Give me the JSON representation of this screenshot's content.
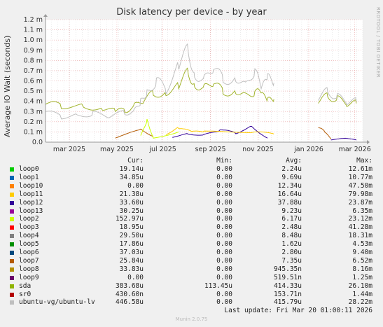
{
  "chart_data": {
    "type": "line",
    "title": "Disk latency per device - by year",
    "ylabel": "Average IO Wait (seconds)",
    "xlabel": "",
    "side_label": "RRDTOOL / TOBI OETIKER",
    "ylim": [
      0,
      0.0012
    ],
    "yticks": [
      "0.0",
      "0.1 m",
      "0.2 m",
      "0.3 m",
      "0.4 m",
      "0.5 m",
      "0.6 m",
      "0.7 m",
      "0.8 m",
      "0.9 m",
      "1.0 m",
      "1.1 m",
      "1.2 m"
    ],
    "xticks": [
      "mar 2025",
      "may 2025",
      "jul 2025",
      "sep 2025",
      "nov 2025",
      "jan 2026",
      "mar 2026"
    ],
    "grid": true,
    "colors": {
      "background": "#f0f0f0",
      "plot_background": "#ffffff",
      "grid_major": "#e8a0a0",
      "grid_minor": "#d8d8d8",
      "axis": "#999999"
    },
    "series": [
      {
        "name": "sda",
        "color": "#a2b42d",
        "points": [
          [
            0.0,
            0.00037
          ],
          [
            0.05,
            0.00036
          ],
          [
            0.12,
            0.00035
          ],
          [
            0.18,
            0.00034
          ],
          [
            0.22,
            0.0003
          ],
          [
            0.25,
            0.00031
          ],
          [
            0.28,
            0.00035
          ],
          [
            0.31,
            0.00042
          ],
          [
            0.34,
            0.00047
          ],
          [
            0.38,
            0.0005
          ],
          [
            0.42,
            0.00055
          ],
          [
            0.45,
            0.00068
          ],
          [
            0.47,
            0.00058
          ],
          [
            0.5,
            0.00052
          ],
          [
            0.53,
            0.0006
          ],
          [
            0.56,
            0.00048
          ],
          [
            0.6,
            0.00052
          ],
          [
            0.63,
            0.00045
          ],
          [
            0.66,
            0.0005
          ],
          [
            0.68,
            0.00046
          ],
          [
            0.7,
            0.0004
          ],
          [
            0.72,
            0.00042
          ]
        ],
        "points2": [
          [
            0.86,
            0.0004
          ],
          [
            0.89,
            0.00045
          ],
          [
            0.92,
            0.00042
          ],
          [
            0.95,
            0.00038
          ],
          [
            0.98,
            0.00038
          ]
        ]
      },
      {
        "name": "ubuntu-vg/ubuntu-lv",
        "color": "#c0c0c0",
        "points": [
          [
            0.0,
            0.0003
          ],
          [
            0.05,
            0.00025
          ],
          [
            0.1,
            0.00026
          ],
          [
            0.15,
            0.00028
          ],
          [
            0.2,
            0.00025
          ],
          [
            0.25,
            0.00029
          ],
          [
            0.28,
            0.0003
          ],
          [
            0.3,
            0.0004
          ],
          [
            0.32,
            0.0005
          ],
          [
            0.35,
            0.0006
          ],
          [
            0.38,
            0.00052
          ],
          [
            0.42,
            0.00075
          ],
          [
            0.45,
            0.0009
          ],
          [
            0.47,
            0.00068
          ],
          [
            0.5,
            0.0006
          ],
          [
            0.53,
            0.00075
          ],
          [
            0.56,
            0.0006
          ],
          [
            0.6,
            0.00065
          ],
          [
            0.63,
            0.00055
          ],
          [
            0.66,
            0.00072
          ],
          [
            0.68,
            0.0005
          ],
          [
            0.7,
            0.00062
          ],
          [
            0.72,
            0.00058
          ]
        ],
        "points2": [
          [
            0.86,
            0.00043
          ],
          [
            0.89,
            0.0005
          ],
          [
            0.92,
            0.00044
          ],
          [
            0.95,
            0.0004
          ],
          [
            0.98,
            0.0004
          ]
        ]
      },
      {
        "name": "loop12",
        "color": "#330099",
        "points": [
          [
            0.4,
            5e-05
          ],
          [
            0.45,
            8e-05
          ],
          [
            0.5,
            7e-05
          ],
          [
            0.55,
            0.00012
          ],
          [
            0.6,
            9e-05
          ],
          [
            0.65,
            0.00015
          ],
          [
            0.7,
            4e-05
          ]
        ],
        "points2": [
          [
            0.9,
            2e-05
          ],
          [
            0.95,
            4e-05
          ],
          [
            0.98,
            2e-05
          ]
        ]
      },
      {
        "name": "loop11",
        "color": "#ffcc00",
        "points": [
          [
            0.38,
            8e-05
          ],
          [
            0.42,
            0.00014
          ],
          [
            0.46,
            0.0001
          ],
          [
            0.5,
            0.0001
          ],
          [
            0.66,
            0.0001
          ],
          [
            0.72,
            8e-05
          ]
        ],
        "points2": [
          [
            0.99,
            1e-05
          ]
        ]
      },
      {
        "name": "loop7",
        "color": "#b35900",
        "points": [
          [
            0.22,
            4e-05
          ],
          [
            0.3,
            0.00012
          ],
          [
            0.34,
            6e-05
          ]
        ],
        "points2": [
          [
            0.86,
            0.00015
          ],
          [
            0.88,
            0.0001
          ],
          [
            0.9,
            3e-05
          ]
        ]
      },
      {
        "name": "loop2",
        "color": "#ccff00",
        "points": [
          [
            0.3,
            6e-05
          ],
          [
            0.32,
            0.00022
          ],
          [
            0.34,
            4e-05
          ],
          [
            0.42,
            0.0001
          ]
        ],
        "points2": [
          [
            0.99,
            0.00017
          ]
        ]
      }
    ],
    "gap_region": [
      0.73,
      0.85
    ]
  },
  "table": {
    "headers": {
      "cur": "Cur:",
      "min": "Min:",
      "avg": "Avg:",
      "max": "Max:"
    },
    "rows": [
      {
        "name": "loop0",
        "color": "#00cc00",
        "cur": "19.14u",
        "min": "0.00",
        "avg": "2.24u",
        "max": "12.61m"
      },
      {
        "name": "loop1",
        "color": "#0066b3",
        "cur": "34.85u",
        "min": "0.00",
        "avg": "9.69u",
        "max": "10.77m"
      },
      {
        "name": "loop10",
        "color": "#ff8000",
        "cur": "0.00",
        "min": "0.00",
        "avg": "12.34u",
        "max": "47.50m"
      },
      {
        "name": "loop11",
        "color": "#ffcc00",
        "cur": "21.38u",
        "min": "0.00",
        "avg": "16.64u",
        "max": "79.98m"
      },
      {
        "name": "loop12",
        "color": "#330099",
        "cur": "33.60u",
        "min": "0.00",
        "avg": "37.88u",
        "max": "23.87m"
      },
      {
        "name": "loop13",
        "color": "#990099",
        "cur": "30.25u",
        "min": "0.00",
        "avg": "9.23u",
        "max": "6.35m"
      },
      {
        "name": "loop2",
        "color": "#ccff00",
        "cur": "152.97u",
        "min": "0.00",
        "avg": "6.17u",
        "max": "23.12m"
      },
      {
        "name": "loop3",
        "color": "#ff0000",
        "cur": "18.95u",
        "min": "0.00",
        "avg": "2.48u",
        "max": "41.28m"
      },
      {
        "name": "loop4",
        "color": "#808080",
        "cur": "29.50u",
        "min": "0.00",
        "avg": "8.48u",
        "max": "18.31m"
      },
      {
        "name": "loop5",
        "color": "#008f00",
        "cur": "17.86u",
        "min": "0.00",
        "avg": "1.62u",
        "max": "4.53m"
      },
      {
        "name": "loop6",
        "color": "#00487d",
        "cur": "37.03u",
        "min": "0.00",
        "avg": "2.80u",
        "max": "9.40m"
      },
      {
        "name": "loop7",
        "color": "#b35a00",
        "cur": "25.84u",
        "min": "0.00",
        "avg": "7.35u",
        "max": "6.52m"
      },
      {
        "name": "loop8",
        "color": "#b38f00",
        "cur": "33.83u",
        "min": "0.00",
        "avg": "945.35n",
        "max": "8.16m"
      },
      {
        "name": "loop9",
        "color": "#6b006b",
        "cur": "0.00",
        "min": "0.00",
        "avg": "519.51n",
        "max": "1.25m"
      },
      {
        "name": "sda",
        "color": "#8fb300",
        "cur": "383.68u",
        "min": "113.45u",
        "avg": "414.33u",
        "max": "26.10m"
      },
      {
        "name": "sr0",
        "color": "#b30000",
        "cur": "430.60n",
        "min": "0.00",
        "avg": "153.71n",
        "max": "1.44m"
      },
      {
        "name": "ubuntu-vg/ubuntu-lv",
        "color": "#bebebe",
        "cur": "446.58u",
        "min": "0.00",
        "avg": "415.79u",
        "max": "28.22m"
      }
    ]
  },
  "last_update": "Last update: Fri Mar 20 01:00:11 2026",
  "footer": "Munin 2.0.75"
}
